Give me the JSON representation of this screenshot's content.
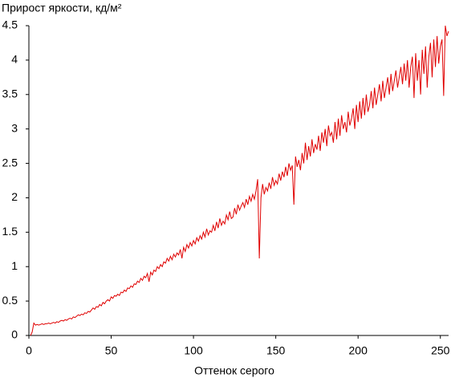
{
  "chart_data": {
    "type": "line",
    "title": "Прирост яркости, кд/м²",
    "x_label": "Оттенок серого",
    "xlim": [
      0,
      255
    ],
    "xticks": [
      0,
      50,
      100,
      150,
      200,
      250
    ],
    "ylim": [
      0,
      4.5
    ],
    "yticks": [
      0,
      0.5,
      1,
      1.5,
      2,
      2.5,
      3,
      3.5,
      4,
      4.5
    ],
    "grid": false,
    "x": [
      1,
      2,
      3,
      4,
      5,
      6,
      7,
      8,
      9,
      10,
      11,
      12,
      13,
      14,
      15,
      16,
      17,
      18,
      19,
      20,
      21,
      22,
      23,
      24,
      25,
      26,
      27,
      28,
      29,
      30,
      31,
      32,
      33,
      34,
      35,
      36,
      37,
      38,
      39,
      40,
      41,
      42,
      43,
      44,
      45,
      46,
      47,
      48,
      49,
      50,
      51,
      52,
      53,
      54,
      55,
      56,
      57,
      58,
      59,
      60,
      61,
      62,
      63,
      64,
      65,
      66,
      67,
      68,
      69,
      70,
      71,
      72,
      73,
      74,
      75,
      76,
      77,
      78,
      79,
      80,
      81,
      82,
      83,
      84,
      85,
      86,
      87,
      88,
      89,
      90,
      91,
      92,
      93,
      94,
      95,
      96,
      97,
      98,
      99,
      100,
      101,
      102,
      103,
      104,
      105,
      106,
      107,
      108,
      109,
      110,
      111,
      112,
      113,
      114,
      115,
      116,
      117,
      118,
      119,
      120,
      121,
      122,
      123,
      124,
      125,
      126,
      127,
      128,
      129,
      130,
      131,
      132,
      133,
      134,
      135,
      136,
      137,
      138,
      139,
      140,
      141,
      142,
      143,
      144,
      145,
      146,
      147,
      148,
      149,
      150,
      151,
      152,
      153,
      154,
      155,
      156,
      157,
      158,
      159,
      160,
      161,
      162,
      163,
      164,
      165,
      166,
      167,
      168,
      169,
      170,
      171,
      172,
      173,
      174,
      175,
      176,
      177,
      178,
      179,
      180,
      181,
      182,
      183,
      184,
      185,
      186,
      187,
      188,
      189,
      190,
      191,
      192,
      193,
      194,
      195,
      196,
      197,
      198,
      199,
      200,
      201,
      202,
      203,
      204,
      205,
      206,
      207,
      208,
      209,
      210,
      211,
      212,
      213,
      214,
      215,
      216,
      217,
      218,
      219,
      220,
      221,
      222,
      223,
      224,
      225,
      226,
      227,
      228,
      229,
      230,
      231,
      232,
      233,
      234,
      235,
      236,
      237,
      238,
      239,
      240,
      241,
      242,
      243,
      244,
      245,
      246,
      247,
      248,
      249,
      250,
      251,
      252,
      253,
      254,
      255
    ],
    "series": [
      {
        "color": "#e00000",
        "values": [
          0,
          0.05,
          0.18,
          0.15,
          0.16,
          0.15,
          0.16,
          0.17,
          0.16,
          0.17,
          0.17,
          0.18,
          0.17,
          0.18,
          0.19,
          0.18,
          0.2,
          0.19,
          0.21,
          0.22,
          0.21,
          0.23,
          0.22,
          0.24,
          0.25,
          0.24,
          0.27,
          0.26,
          0.28,
          0.3,
          0.29,
          0.31,
          0.3,
          0.33,
          0.32,
          0.35,
          0.34,
          0.37,
          0.4,
          0.38,
          0.42,
          0.41,
          0.45,
          0.43,
          0.48,
          0.46,
          0.5,
          0.52,
          0.5,
          0.56,
          0.54,
          0.58,
          0.57,
          0.6,
          0.58,
          0.63,
          0.62,
          0.66,
          0.64,
          0.69,
          0.68,
          0.72,
          0.7,
          0.75,
          0.74,
          0.79,
          0.77,
          0.83,
          0.8,
          0.86,
          0.84,
          0.9,
          0.78,
          0.92,
          0.88,
          0.95,
          0.93,
          1.0,
          0.97,
          1.03,
          1.0,
          1.07,
          1.05,
          1.12,
          1.08,
          1.15,
          1.1,
          1.18,
          1.14,
          1.2,
          1.17,
          1.25,
          1.12,
          1.28,
          1.22,
          1.32,
          1.27,
          1.35,
          1.3,
          1.38,
          1.33,
          1.42,
          1.37,
          1.45,
          1.4,
          1.5,
          1.43,
          1.55,
          1.46,
          1.52,
          1.5,
          1.6,
          1.52,
          1.65,
          1.56,
          1.7,
          1.6,
          1.66,
          1.62,
          1.75,
          1.68,
          1.8,
          1.7,
          1.72,
          1.85,
          1.76,
          1.9,
          1.82,
          1.88,
          1.93,
          1.86,
          1.98,
          1.9,
          2.02,
          1.95,
          2.05,
          1.98,
          2.1,
          2.27,
          1.12,
          2.0,
          2.2,
          2.05,
          2.15,
          2.1,
          2.22,
          2.13,
          2.3,
          2.18,
          2.25,
          2.2,
          2.35,
          2.25,
          2.38,
          2.3,
          2.45,
          2.32,
          2.5,
          2.4,
          2.47,
          1.9,
          2.6,
          2.45,
          2.55,
          2.4,
          2.65,
          2.5,
          2.8,
          2.55,
          2.75,
          2.6,
          2.85,
          2.65,
          2.78,
          2.7,
          2.9,
          2.68,
          2.95,
          2.8,
          3.0,
          2.75,
          3.05,
          2.9,
          2.95,
          2.8,
          3.1,
          2.85,
          3.15,
          2.9,
          3.2,
          3.0,
          3.1,
          2.95,
          3.25,
          3.05,
          3.15,
          3.3,
          3.0,
          3.35,
          3.1,
          3.4,
          3.15,
          3.45,
          3.2,
          3.5,
          3.25,
          3.35,
          3.55,
          3.3,
          3.6,
          3.35,
          3.5,
          3.65,
          3.4,
          3.7,
          3.45,
          3.6,
          3.75,
          3.5,
          3.8,
          3.55,
          3.7,
          3.85,
          3.6,
          3.75,
          3.9,
          3.65,
          3.95,
          3.7,
          4.0,
          3.6,
          3.9,
          4.05,
          3.45,
          4.1,
          3.7,
          4.0,
          3.5,
          4.15,
          3.8,
          4.2,
          3.6,
          4.05,
          4.25,
          3.75,
          4.3,
          3.9,
          4.35,
          3.95,
          4.2,
          4.3,
          3.48,
          4.5,
          4.35,
          4.42
        ]
      }
    ]
  }
}
